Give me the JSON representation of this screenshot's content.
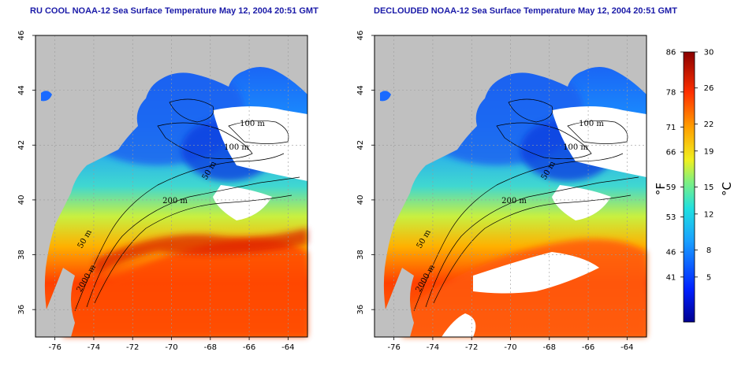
{
  "panels": [
    {
      "id": "left",
      "title": "RU COOL NOAA-12 Sea Surface Temperature May 12, 2004 20:51 GMT",
      "contour_labels": [
        "100 m",
        "100 m",
        "50 m",
        "200 m",
        "50 m",
        "2000 m"
      ]
    },
    {
      "id": "right",
      "title": "DECLOUDED NOAA-12 Sea Surface Temperature May 12, 2004 20:51 GMT",
      "contour_labels": [
        "100 m",
        "100 m",
        "50 m",
        "200 m",
        "50 m",
        "2000 m"
      ]
    }
  ],
  "axes": {
    "lon_ticks": [
      -76,
      -74,
      -72,
      -70,
      -68,
      -66,
      -64
    ],
    "lon_range": [
      -77,
      -63
    ],
    "lat_ticks": [
      36,
      38,
      40,
      42,
      44,
      46
    ],
    "lat_range": [
      35,
      46
    ]
  },
  "colorbar": {
    "fahrenheit_label": "°F",
    "celsius_label": "°C",
    "fahrenheit_ticks": [
      86,
      78,
      71,
      66,
      59,
      53,
      46,
      41
    ],
    "celsius_ticks": [
      30,
      26,
      22,
      19,
      15,
      12,
      8,
      5
    ],
    "range_c": [
      0,
      30
    ]
  },
  "colors": {
    "land": "#c0c0c0",
    "cloud": "#ffffff",
    "title": "#1a1aa8"
  }
}
